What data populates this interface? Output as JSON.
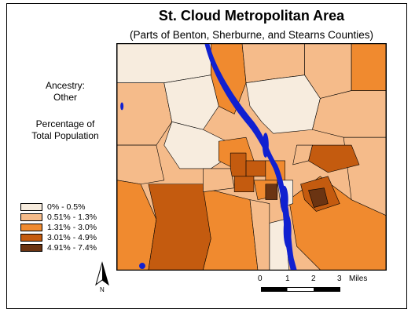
{
  "title": "St. Cloud Metropolitan Area",
  "subtitle": "(Parts of Benton, Sherburne, and Stearns Counties)",
  "ancestry_label": "Ancestry:",
  "ancestry_value": "Other",
  "percentage_label": "Percentage of",
  "total_population_label": "Total Population",
  "legend": [
    {
      "label": "0% - 0.5%",
      "color": "#f7ecde"
    },
    {
      "label": "0.51% - 1.3%",
      "color": "#f5bb8a"
    },
    {
      "label": "1.31% - 3.0%",
      "color": "#f08a2f"
    },
    {
      "label": "3.01% - 4.9%",
      "color": "#c45b0f"
    },
    {
      "label": "4.91% - 7.4%",
      "color": "#6b3412"
    }
  ],
  "water_color": "#1020d0",
  "north_label": "N",
  "scale": {
    "ticks": [
      "0",
      "1",
      "2",
      "3"
    ],
    "unit": "Miles"
  }
}
